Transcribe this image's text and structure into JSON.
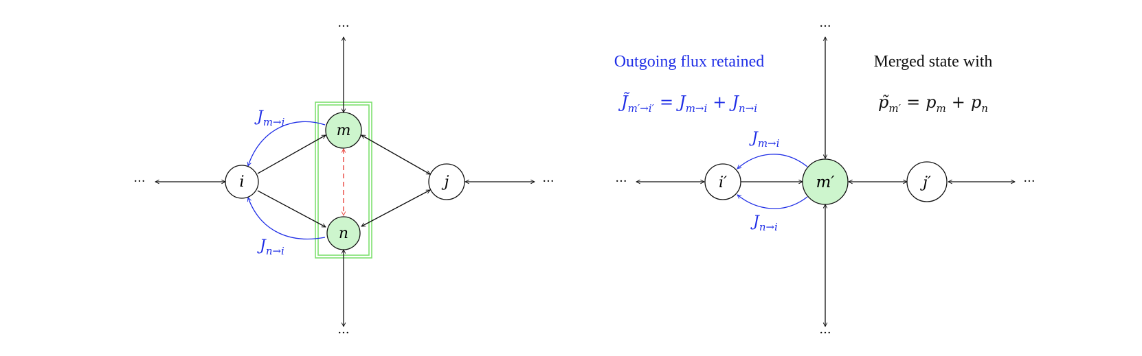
{
  "colors": {
    "blue": "#1f2ee6",
    "green_fill": "#cdf5cd",
    "green_box": "#7ddf6e",
    "red_dashed": "#e8433c",
    "black": "#111111"
  },
  "left": {
    "nodes": {
      "i": "i",
      "j": "j",
      "m": "m",
      "n": "n"
    },
    "ellipsis": {
      "left": "···",
      "right": "···",
      "top": "···",
      "bottom": "···"
    },
    "flux_labels": {
      "m_to_i": {
        "base": "J",
        "sub": "m→i"
      },
      "n_to_i": {
        "base": "J",
        "sub": "n→i"
      }
    }
  },
  "right": {
    "nodes": {
      "i_prime": "i′",
      "m_prime": "m′",
      "j_prime": "j′"
    },
    "ellipsis": {
      "left": "···",
      "right": "···",
      "top": "···",
      "bottom": "···"
    },
    "flux_labels": {
      "m_to_i": {
        "base": "J",
        "sub": "m→i"
      },
      "n_to_i": {
        "base": "J",
        "sub": "n→i"
      }
    },
    "outgoing_title": "Outgoing flux retained",
    "outgoing_eq": {
      "lhs_base": "J̃",
      "lhs_sub": "m′→i′",
      "eq": "=",
      "t1_base": "J",
      "t1_sub": "m→i",
      "plus": "+",
      "t2_base": "J",
      "t2_sub": "n→i"
    },
    "merged_title": "Merged state with",
    "merged_eq": {
      "lhs_base": "p̃",
      "lhs_sub": "m′",
      "eq": "=",
      "t1_base": "p",
      "t1_sub": "m",
      "plus": "+",
      "t2_base": "p",
      "t2_sub": "n"
    }
  }
}
